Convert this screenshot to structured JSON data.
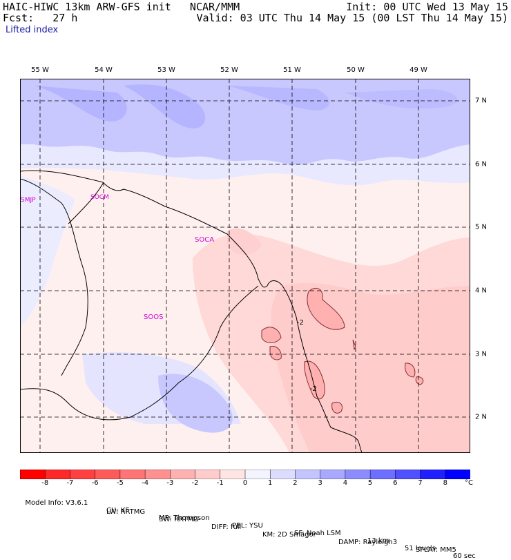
{
  "header": {
    "model_title": "HAIC-HIWC 13km ARW-GFS init   NCAR/MMM",
    "forecast_label": "Fcst:   27 h",
    "init_label": "Init: 00 UTC Wed 13 May 15",
    "valid_label": "Valid: 03 UTC Thu 14 May 15 (00 LST Thu 14 May 15)",
    "field_name": "Lifted index"
  },
  "map": {
    "lon_labels": [
      "55 W",
      "54 W",
      "53 W",
      "52 W",
      "51 W",
      "50 W",
      "49 W"
    ],
    "lat_labels": [
      "7 N",
      "6 N",
      "5 N",
      "4 N",
      "3 N",
      "2 N"
    ],
    "stations": [
      "SMJP",
      "SOCM",
      "SOCA",
      "SOOS"
    ],
    "contour_labels": [
      "-2",
      "-2"
    ]
  },
  "colorbar": {
    "ticks": [
      "-8",
      "-7",
      "-6",
      "-5",
      "-4",
      "-3",
      "-2",
      "-1",
      "0",
      "1",
      "2",
      "3",
      "4",
      "5",
      "6",
      "7",
      "8",
      "°C"
    ],
    "colors": [
      "#ff0000",
      "#ff2828",
      "#ff4040",
      "#ff5a5a",
      "#ff7474",
      "#ff9090",
      "#ffb0b0",
      "#ffcccc",
      "#ffe4e4",
      "#f4f4ff",
      "#dcdcff",
      "#c4c4ff",
      "#a8a8ff",
      "#8c8cff",
      "#6e6eff",
      "#5050ff",
      "#2020ff",
      "#0000ff"
    ]
  },
  "footer": {
    "line1": [
      "Model Info: V3.6.1",
      "CU: KF",
      "MP: Thompson",
      "PBL: YSU",
      "SF: Noah LSM",
      "13 km",
      "51 levels",
      "60 sec"
    ],
    "line2": [
      "LW: RRTMG",
      "SW: RRTMG",
      "DIFF: full",
      "KM: 2D Smagor",
      "DAMP: Rayleigh3",
      "SFLAY: MM5"
    ]
  }
}
